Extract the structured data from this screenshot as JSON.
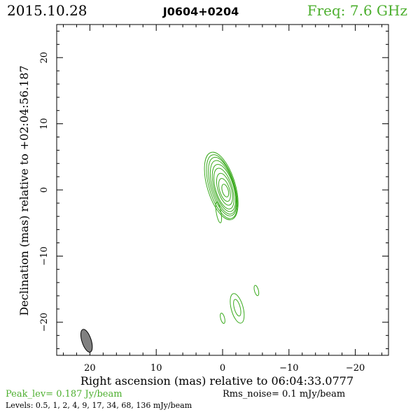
{
  "header": {
    "date": "2015.10.28",
    "source": "J0604+0204",
    "frequency": "Freq: 7.6 GHz"
  },
  "footer": {
    "peak": "Peak_lev=  0.187 Jy/beam",
    "rms": "Rms_noise=   0.1 mJy/beam",
    "levels": "Levels: 0.5,    1,    2,    4,    9,   17,   34,   68, 136 mJy/beam"
  },
  "colors": {
    "contour": "#3aaa1e",
    "header_green": "#4caf2e",
    "beam_fill": "#808080",
    "axis": "#000000"
  },
  "chart_data": {
    "type": "contour",
    "title": "J0604+0204",
    "xlabel": "Right ascension (mas) relative to 06:04:33.0777",
    "ylabel": "Declination (mas) relative to +02:04:56.187",
    "xlim": [
      25,
      -25
    ],
    "ylim": [
      -25,
      25
    ],
    "x_ticks": [
      20,
      10,
      0,
      -10,
      -20
    ],
    "y_ticks": [
      20,
      10,
      0,
      -10,
      -20
    ],
    "x_tick_labels": [
      "20",
      "10",
      "0",
      "−10",
      "−20"
    ],
    "y_tick_labels": [
      "20",
      "10",
      "0",
      "−10",
      "−20"
    ],
    "contour_levels_mJy": [
      0.5,
      1,
      2,
      4,
      9,
      17,
      34,
      68,
      136
    ],
    "peak_Jy_per_beam": 0.187,
    "rms_noise_mJy_per_beam": 0.1,
    "components": [
      {
        "name": "core",
        "contours": [
          {
            "cx": 0.2,
            "cy": 0.6,
            "rx": 2.1,
            "ry": 5.3,
            "angle_deg": 17
          },
          {
            "cx": 0.1,
            "cy": 0.5,
            "rx": 1.9,
            "ry": 5.0,
            "angle_deg": 17
          },
          {
            "cx": 0.0,
            "cy": 0.5,
            "rx": 1.75,
            "ry": 4.6,
            "angle_deg": 17
          },
          {
            "cx": -0.1,
            "cy": 0.4,
            "rx": 1.6,
            "ry": 4.2,
            "angle_deg": 17
          },
          {
            "cx": -0.2,
            "cy": 0.3,
            "rx": 1.45,
            "ry": 3.7,
            "angle_deg": 17
          },
          {
            "cx": -0.2,
            "cy": 0.2,
            "rx": 1.25,
            "ry": 3.2,
            "angle_deg": 17
          },
          {
            "cx": -0.3,
            "cy": 0.1,
            "rx": 1.0,
            "ry": 2.5,
            "angle_deg": 17
          },
          {
            "cx": -0.3,
            "cy": 0.0,
            "rx": 0.75,
            "ry": 1.8,
            "angle_deg": 17
          },
          {
            "cx": -0.4,
            "cy": -0.1,
            "rx": 0.45,
            "ry": 1.0,
            "angle_deg": 17
          }
        ],
        "extension": {
          "cx": 0.6,
          "cy": -3.4,
          "rx": 0.35,
          "ry": 1.6,
          "angle_deg": 10
        }
      },
      {
        "name": "southern-knot",
        "contours": [
          {
            "cx": -2.2,
            "cy": -17.9,
            "rx": 0.9,
            "ry": 2.3,
            "angle_deg": 15
          },
          {
            "cx": -2.2,
            "cy": -17.8,
            "rx": 0.45,
            "ry": 1.3,
            "angle_deg": 15
          }
        ]
      },
      {
        "name": "eastern-blob",
        "contours": [
          {
            "cx": 0.0,
            "cy": -19.4,
            "rx": 0.3,
            "ry": 0.8,
            "angle_deg": 15
          }
        ]
      },
      {
        "name": "western-blob",
        "contours": [
          {
            "cx": -5.1,
            "cy": -15.2,
            "rx": 0.3,
            "ry": 0.8,
            "angle_deg": 15
          }
        ]
      }
    ],
    "beam": {
      "cx": 20.5,
      "cy": -22.8,
      "rx": 0.7,
      "ry": 1.8,
      "angle_deg": 18
    },
    "grid": false,
    "legend": "none"
  }
}
